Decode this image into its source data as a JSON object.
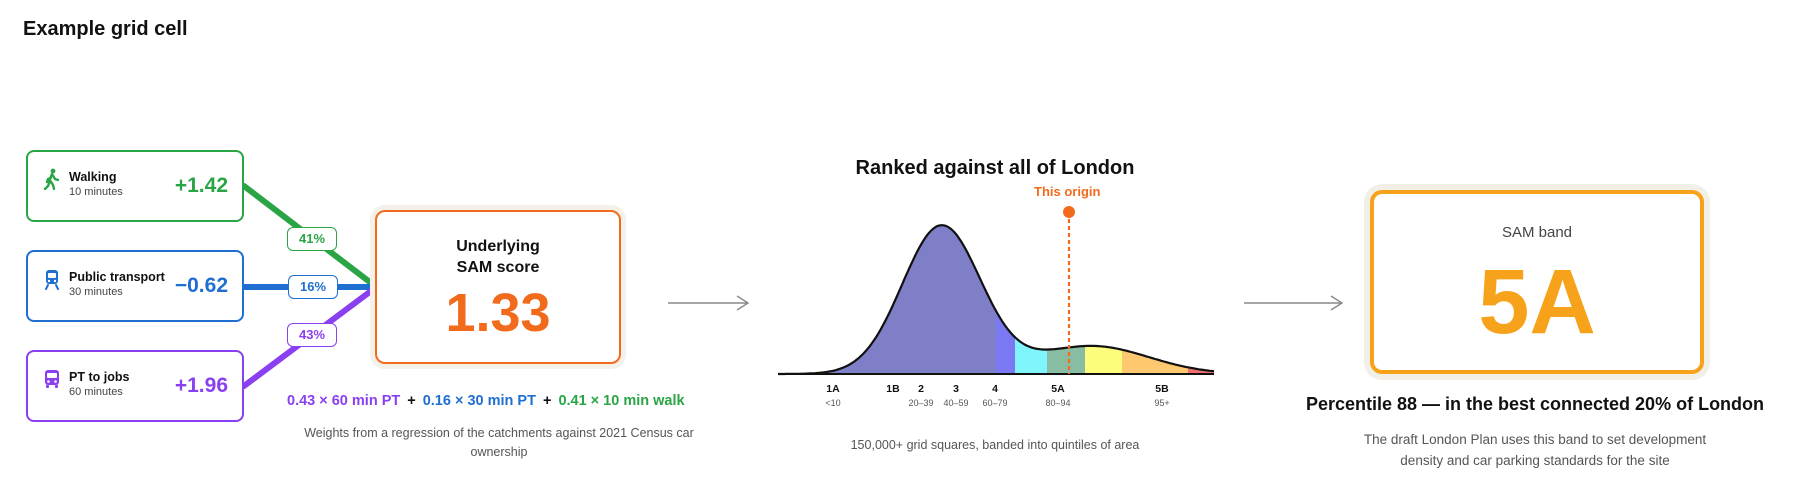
{
  "title": "Example grid cell",
  "modes": [
    {
      "name": "Walking",
      "time": "10 minutes",
      "value": "+1.42",
      "color": "#2aa545",
      "icon": "walking-person-icon"
    },
    {
      "name": "Public transport",
      "time": "30 minutes",
      "value": "−0.62",
      "color": "#1f6fd1",
      "icon": "tram-icon"
    },
    {
      "name": "PT to jobs",
      "time": "60 minutes",
      "value": "+1.96",
      "color": "#8a3ff0",
      "icon": "bus-icon"
    }
  ],
  "weights": [
    "41%",
    "16%",
    "43%"
  ],
  "score": {
    "label_line1": "Underlying",
    "label_line2": "SAM score",
    "value": "1.33",
    "color": "#f26b1d"
  },
  "formula": {
    "terms": [
      "0.43 × 60 min PT",
      "0.16 × 30 min PT",
      "0.41 × 10 min walk"
    ],
    "plus": "+"
  },
  "weights_caption": {
    "line1": "Weights from a regression of the catchments against 2021 Census car",
    "line2": "ownership"
  },
  "chart_data": {
    "type": "area",
    "title": "Ranked against all of London",
    "annotation": "This origin",
    "annotation_percentile": 88,
    "bands": [
      {
        "code": "1A",
        "range": "<10",
        "color": "#7f7fc8"
      },
      {
        "code": "1B",
        "range": "",
        "color": "#7a78f2"
      },
      {
        "code": "2",
        "range": "20–39",
        "color": "#80f4fb"
      },
      {
        "code": "3",
        "range": "40–59",
        "color": "#89bda3"
      },
      {
        "code": "4",
        "range": "60–79",
        "color": "#fdfd7c"
      },
      {
        "code": "5A",
        "range": "80–94",
        "color": "#fdc870"
      },
      {
        "code": "5B",
        "range": "95+",
        "color": "#f07070"
      }
    ],
    "caption": "150,000+ grid squares, banded into quintiles of area"
  },
  "band": {
    "label": "SAM band",
    "value": "5A",
    "color": "#f7a21b"
  },
  "percentile_text": "Percentile 88 — in the best connected 20% of London",
  "band_caption": {
    "line1": "The draft London Plan uses this band to set development",
    "line2": "density and car parking standards for the site"
  }
}
